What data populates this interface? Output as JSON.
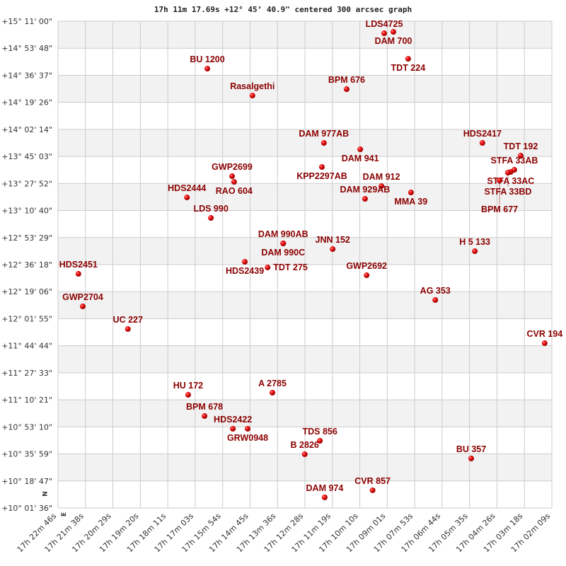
{
  "chart_data": {
    "type": "scatter",
    "title": "17h 11m 17.69s +12° 45’ 40.9\" centered 300 arcsec graph",
    "x_axis": {
      "direction": "right-to-left increasing RA",
      "range": [
        "17h 22m 46s",
        "17h 02m 09s"
      ],
      "tick_labels": [
        "17h 22m 46s",
        "17h 21m 38s",
        "17h 20m 29s",
        "17h 19m 20s",
        "17h 18m 11s",
        "17h 17m 03s",
        "17h 15m 54s",
        "17h 14m 45s",
        "17h 13m 36s",
        "17h 12m 28s",
        "17h 11m 19s",
        "17h 10m 10s",
        "17h 09m 01s",
        "17h 07m 53s",
        "17h 06m 44s",
        "17h 05m 35s",
        "17h 04m 26s",
        "17h 03m 18s",
        "17h 02m 09s"
      ]
    },
    "y_axis": {
      "range": [
        "+10° 01' 36\"",
        "+15° 11' 00\""
      ],
      "tick_labels": [
        "+15° 11' 00\"",
        "+14° 53' 48\"",
        "+14° 36' 37\"",
        "+14° 19' 26\"",
        "+14° 02' 14\"",
        "+13° 45' 03\"",
        "+13° 27' 52\"",
        "+13° 10' 40\"",
        "+12° 53' 29\"",
        "+12° 36' 18\"",
        "+12° 19' 06\"",
        "+12° 01' 55\"",
        "+11° 44' 44\"",
        "+11° 27' 33\"",
        "+11° 10' 21\"",
        "+10° 53' 10\"",
        "+10° 35' 59\"",
        "+10° 18' 47\"",
        "+10° 01' 36\""
      ]
    },
    "grid": true,
    "alternating_row_bands": true,
    "compass": {
      "north": "N",
      "east": "E"
    },
    "colors": {
      "point": "#dd0000",
      "label": "#8b0000",
      "band": "#f2f2f2",
      "grid": "#cccccc"
    },
    "points": [
      {
        "name": "LDS4725",
        "ra": "17h 09m 09s",
        "dec": "+15° 03' 20\""
      },
      {
        "name": "DAM 700",
        "ra": "17h 08m 46s",
        "dec": "+15° 04' 14\""
      },
      {
        "name": "TDT 224",
        "ra": "17h 08m 09s",
        "dec": "+14° 47' 08\""
      },
      {
        "name": "BU 1200",
        "ra": "17h 16m 32s",
        "dec": "+14° 40' 51\""
      },
      {
        "name": "Rasalgethi",
        "ra": "17h 14m 39s",
        "dec": "+14° 23' 45\""
      },
      {
        "name": "BPM 676",
        "ra": "17h 10m 43s",
        "dec": "+14° 27' 48\""
      },
      {
        "name": "DAM 977AB",
        "ra": "17h 11m 40s",
        "dec": "+13° 53' 38\""
      },
      {
        "name": "DAM 941",
        "ra": "17h 10m 09s",
        "dec": "+13° 49' 35\""
      },
      {
        "name": "KPP2297AB",
        "ra": "17h 11m 45s",
        "dec": "+13° 38' 20\""
      },
      {
        "name": "HDS2417",
        "ra": "17h 05m 03s",
        "dec": "+13° 53' 38\""
      },
      {
        "name": "TDT 192",
        "ra": "17h 03m 27s",
        "dec": "+13° 45' 32\""
      },
      {
        "name": "STFA 33AB",
        "ra": "17h 03m 43s",
        "dec": "+13° 36' 32\""
      },
      {
        "name": "STFA 33AC",
        "ra": "17h 03m 52s",
        "dec": "+13° 35' 12\""
      },
      {
        "name": "STFA 33BD",
        "ra": "17h 03m 59s",
        "dec": "+13° 34' 45\""
      },
      {
        "name": "BPM 677",
        "ra": "17h 04m 20s",
        "dec": "+13° 29' 48\""
      },
      {
        "name": "GWP2699",
        "ra": "17h 15m 30s",
        "dec": "+13° 32' 30\""
      },
      {
        "name": "RAO 604",
        "ra": "17h 15m 25s",
        "dec": "+13° 28' 54\""
      },
      {
        "name": "DAM 912",
        "ra": "17h 09m 16s",
        "dec": "+13° 26' 12\""
      },
      {
        "name": "DAM 929AB",
        "ra": "17h 09m 57s",
        "dec": "+13° 18' 06\""
      },
      {
        "name": "MMA  39",
        "ra": "17h 08m 02s",
        "dec": "+13° 22' 09\""
      },
      {
        "name": "HDS2444",
        "ra": "17h 17m 23s",
        "dec": "+13° 19' 00\""
      },
      {
        "name": "LDS 990",
        "ra": "17h 16m 23s",
        "dec": "+13° 05' 58\""
      },
      {
        "name": "DAM 990AB",
        "ra": "17h 13m 22s",
        "dec": "+12° 49' 47\""
      },
      {
        "name": "DAM 990C",
        "ra": "17h 13m 22s",
        "dec": "+12° 49' 47\""
      },
      {
        "name": "JNN 152",
        "ra": "17h 11m 18s",
        "dec": "+12° 46' 11\""
      },
      {
        "name": "H 5 133",
        "ra": "17h 05m 22s",
        "dec": "+12° 44' 50\""
      },
      {
        "name": "HDS2439",
        "ra": "17h 14m 58s",
        "dec": "+12° 38' 05\""
      },
      {
        "name": "TDT 275",
        "ra": "17h 14m 01s",
        "dec": "+12° 34' 29\""
      },
      {
        "name": "HDS2451",
        "ra": "17h 21m 55s",
        "dec": "+12° 30' 26\""
      },
      {
        "name": "GWP2692",
        "ra": "17h 09m 53s",
        "dec": "+12° 29' 32\""
      },
      {
        "name": "AG  353",
        "ra": "17h 07m 01s",
        "dec": "+12° 13' 48\""
      },
      {
        "name": "GWP2704",
        "ra": "17h 21m 44s",
        "dec": "+12° 09' 45\""
      },
      {
        "name": "UC  227",
        "ra": "17h 19m 51s",
        "dec": "+11° 55' 22\""
      },
      {
        "name": "CVR 194",
        "ra": "17h 02m 27s",
        "dec": "+11° 46' 22\""
      },
      {
        "name": "HU  172",
        "ra": "17h 17m 20s",
        "dec": "+11° 13' 33\""
      },
      {
        "name": "A  2785",
        "ra": "17h 13m 49s",
        "dec": "+11° 14' 54\""
      },
      {
        "name": "BPM 678",
        "ra": "17h 16m 39s",
        "dec": "+11° 00' 03\""
      },
      {
        "name": "HDS2422",
        "ra": "17h 15m 28s",
        "dec": "+10° 51' 58\""
      },
      {
        "name": "GRW0948",
        "ra": "17h 14m 51s",
        "dec": "+10° 51' 58\""
      },
      {
        "name": "TDS 856",
        "ra": "17h 11m 50s",
        "dec": "+10° 44' 19\""
      },
      {
        "name": "B  2826",
        "ra": "17h 12m 28s",
        "dec": "+10° 35' 46\""
      },
      {
        "name": "BU  357",
        "ra": "17h 05m 31s",
        "dec": "+10° 33' 05\""
      },
      {
        "name": "CVR 857",
        "ra": "17h 09m 38s",
        "dec": "+10° 12' 51\""
      },
      {
        "name": "DAM 974",
        "ra": "17h 11m 38s",
        "dec": "+10° 08' 21\""
      }
    ]
  }
}
